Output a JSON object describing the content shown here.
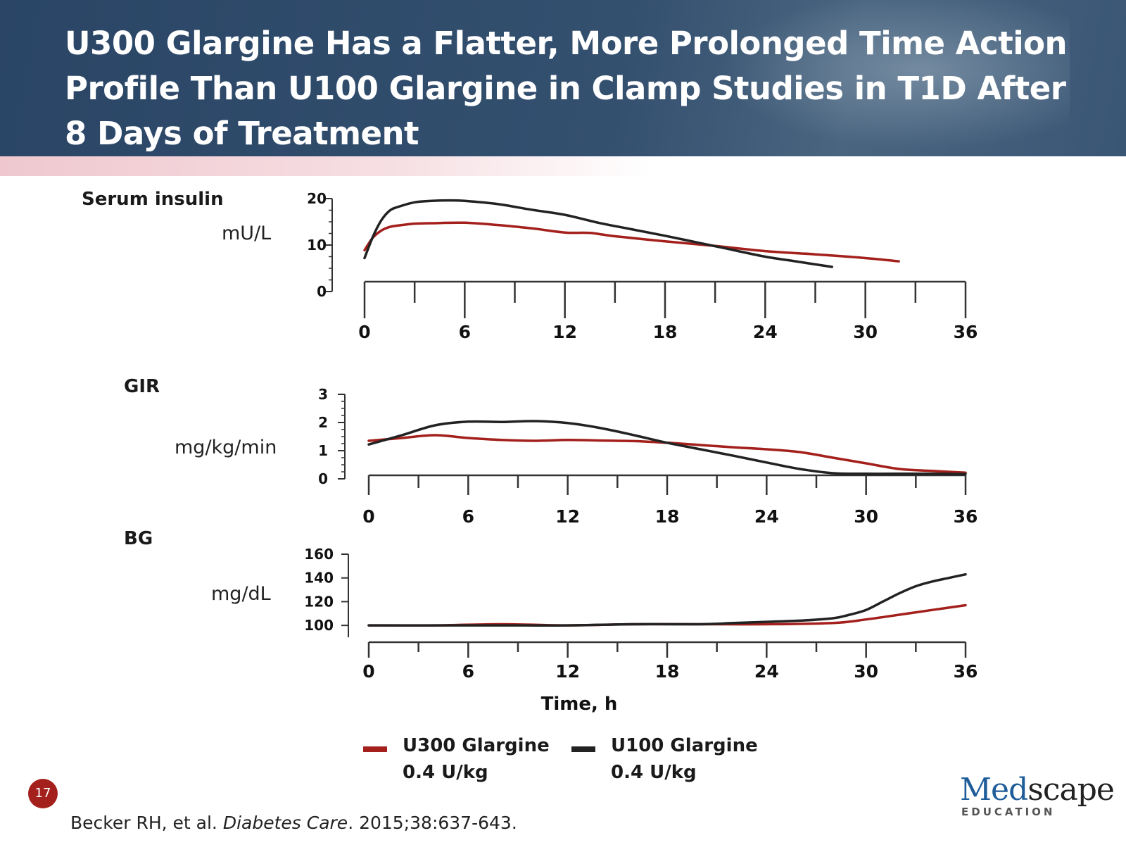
{
  "slide": {
    "title": "U300 Glargine Has a Flatter, More Prolonged Time Action Profile Than U100 Glargine in Clamp Studies in T1D After 8 Days of Treatment",
    "slide_number": "17",
    "citation_authors": "Becker RH, et al. ",
    "citation_journal": "Diabetes Care",
    "citation_rest": ". 2015;38:637-643.",
    "logo_med": "Med",
    "logo_scape": "scape",
    "logo_sub": "EDUCATION"
  },
  "legend": [
    {
      "line1": "U300 Glargine",
      "line2": "0.4 U/kg",
      "color": "#a3201c"
    },
    {
      "line1": "U100 Glargine",
      "line2": "0.4 U/kg",
      "color": "#222222"
    }
  ],
  "chart_data": [
    {
      "type": "line",
      "panel_label": "Serum insulin",
      "ylabel": "mU/L",
      "xlabel": "",
      "xlim": [
        0,
        36
      ],
      "ylim": [
        0,
        20
      ],
      "x_ticks": [
        0,
        6,
        12,
        18,
        24,
        30,
        36
      ],
      "y_ticks": [
        0,
        10,
        20
      ],
      "series": [
        {
          "name": "U300 Glargine 0.4 U/kg",
          "color": "#a3201c",
          "x": [
            0,
            0.5,
            1,
            1.5,
            2,
            3,
            4,
            6,
            8,
            10,
            12,
            13.5,
            15,
            18,
            21,
            24,
            27,
            30,
            32
          ],
          "y": [
            8.9,
            11.6,
            13.1,
            13.9,
            14.2,
            14.6,
            14.7,
            14.8,
            14.3,
            13.6,
            12.7,
            12.6,
            11.9,
            10.8,
            9.8,
            8.7,
            8.0,
            7.2,
            6.5
          ]
        },
        {
          "name": "U100 Glargine 0.4 U/kg",
          "color": "#222222",
          "x": [
            0,
            0.5,
            1,
            1.5,
            2,
            3,
            4,
            5,
            6,
            8,
            10,
            12,
            14,
            16,
            18,
            20,
            22,
            24,
            26,
            28
          ],
          "y": [
            7.2,
            11.8,
            15.3,
            17.4,
            18.2,
            19.2,
            19.5,
            19.6,
            19.5,
            18.8,
            17.6,
            16.5,
            14.8,
            13.4,
            12.0,
            10.5,
            9.0,
            7.5,
            6.4,
            5.3
          ]
        }
      ]
    },
    {
      "type": "line",
      "panel_label": "GIR",
      "ylabel": "mg/kg/min",
      "xlabel": "",
      "xlim": [
        0,
        36
      ],
      "ylim": [
        0,
        3
      ],
      "x_ticks": [
        0,
        6,
        12,
        18,
        24,
        30,
        36
      ],
      "y_ticks": [
        0,
        1,
        2,
        3
      ],
      "series": [
        {
          "name": "U300 Glargine 0.4 U/kg",
          "color": "#a3201c",
          "x": [
            0,
            2,
            4,
            6,
            8,
            10,
            12,
            14,
            16,
            18,
            20,
            22,
            24,
            26,
            28,
            30,
            32,
            34,
            36
          ],
          "y": [
            1.35,
            1.45,
            1.55,
            1.45,
            1.38,
            1.35,
            1.38,
            1.36,
            1.34,
            1.28,
            1.2,
            1.12,
            1.05,
            0.95,
            0.75,
            0.55,
            0.35,
            0.28,
            0.22
          ]
        },
        {
          "name": "U100 Glargine 0.4 U/kg",
          "color": "#222222",
          "x": [
            0,
            2,
            4,
            6,
            8,
            10,
            12,
            14,
            16,
            18,
            20,
            22,
            24,
            26,
            28,
            30,
            32,
            34,
            36
          ],
          "y": [
            1.22,
            1.55,
            1.9,
            2.03,
            2.02,
            2.05,
            1.98,
            1.8,
            1.55,
            1.28,
            1.05,
            0.82,
            0.58,
            0.35,
            0.2,
            0.18,
            0.18,
            0.18,
            0.17
          ]
        }
      ]
    },
    {
      "type": "line",
      "panel_label": "BG",
      "ylabel": "mg/dL",
      "xlabel": "Time, h",
      "xlim": [
        0,
        36
      ],
      "ylim": [
        90,
        160
      ],
      "x_ticks": [
        0,
        6,
        12,
        18,
        24,
        30,
        36
      ],
      "y_ticks": [
        100,
        120,
        140,
        160
      ],
      "series": [
        {
          "name": "U300 Glargine 0.4 U/kg",
          "color": "#a3201c",
          "x": [
            0,
            4,
            8,
            12,
            16,
            20,
            24,
            28,
            30,
            32,
            34,
            36
          ],
          "y": [
            100,
            100,
            101,
            100,
            101,
            101,
            101,
            102,
            105,
            109,
            113,
            117
          ]
        },
        {
          "name": "U100 Glargine 0.4 U/kg",
          "color": "#222222",
          "x": [
            0,
            4,
            8,
            12,
            16,
            20,
            22,
            24,
            26,
            28,
            29,
            30,
            31,
            32,
            33,
            34,
            35,
            36
          ],
          "y": [
            100,
            100,
            100,
            100,
            101,
            101,
            102,
            103,
            104,
            106,
            109,
            113,
            120,
            127,
            133,
            137,
            140,
            143
          ]
        }
      ]
    }
  ]
}
